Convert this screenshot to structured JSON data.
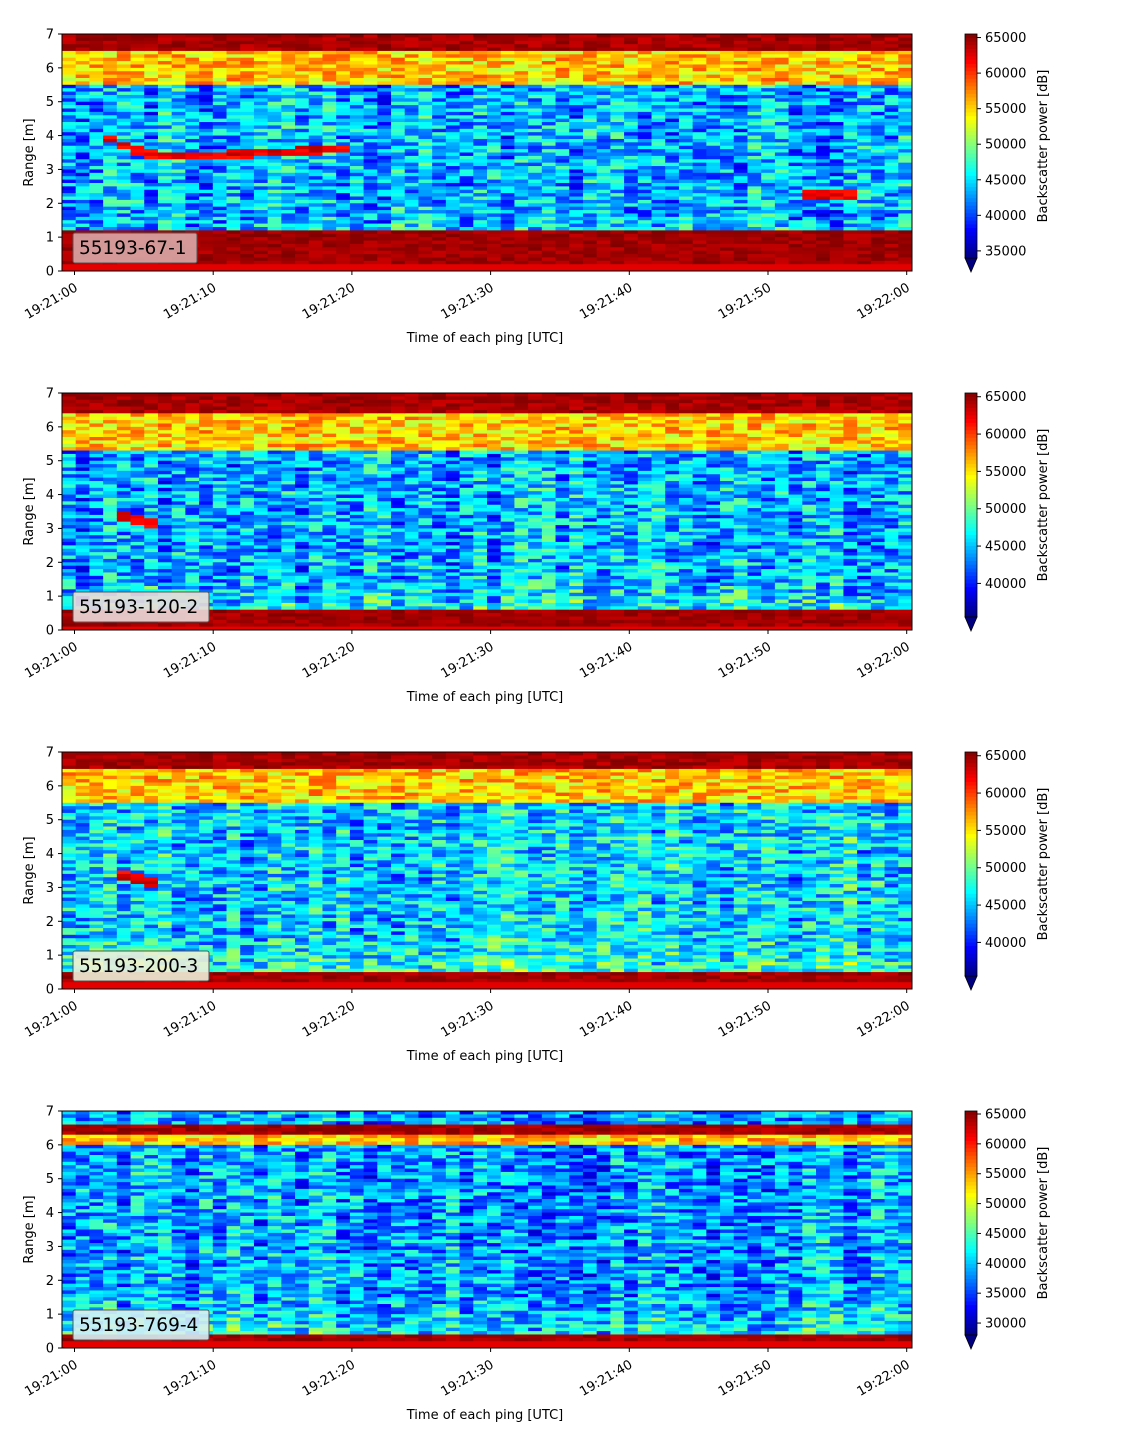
{
  "chart_data": [
    {
      "type": "heatmap",
      "panel_label": "55193-67-1",
      "xlabel": "Time of each ping [UTC]",
      "ylabel": "Range [m]",
      "xticks": [
        "19:21:00",
        "19:21:10",
        "19:21:20",
        "19:21:30",
        "19:21:40",
        "19:21:50",
        "19:22:00"
      ],
      "xlim_seconds_after_1921": [
        -1,
        60.5
      ],
      "ylim": [
        0,
        7
      ],
      "yticks": [
        "0",
        "1",
        "2",
        "3",
        "4",
        "5",
        "6",
        "7"
      ],
      "colorbar_label": "Backscatter power [dB]",
      "colorbar_range": [
        34000,
        65500
      ],
      "colorbar_ticks": [
        "35000",
        "40000",
        "45000",
        "50000",
        "55000",
        "60000",
        "65000"
      ],
      "colormap": "jet",
      "label_box_color": "#d9a8a8",
      "features": {
        "top_band_m": [
          6.5,
          7.0
        ],
        "bright_band_m": [
          5.5,
          6.5
        ],
        "bottom_band_m": [
          0.2,
          1.2
        ],
        "target_track": [
          [
            2,
            4.0
          ],
          [
            4,
            3.6
          ],
          [
            6,
            3.4
          ],
          [
            10,
            3.4
          ],
          [
            14,
            3.5
          ],
          [
            20,
            3.6
          ]
        ],
        "second_target": [
          [
            52,
            2.2
          ],
          [
            56,
            2.2
          ]
        ]
      }
    },
    {
      "type": "heatmap",
      "panel_label": "55193-120-2",
      "xlabel": "Time of each ping [UTC]",
      "ylabel": "Range [m]",
      "xticks": [
        "19:21:00",
        "19:21:10",
        "19:21:20",
        "19:21:30",
        "19:21:40",
        "19:21:50",
        "19:22:00"
      ],
      "ylim": [
        0,
        7
      ],
      "yticks": [
        "0",
        "1",
        "2",
        "3",
        "4",
        "5",
        "6",
        "7"
      ],
      "colorbar_label": "Backscatter power [dB]",
      "colorbar_range": [
        35500,
        65500
      ],
      "colorbar_ticks": [
        "40000",
        "45000",
        "50000",
        "55000",
        "60000",
        "65000"
      ],
      "colormap": "jet",
      "label_box_color": "#ecdcdc",
      "features": {
        "top_band_m": [
          6.4,
          7.0
        ],
        "bright_band_m": [
          5.3,
          6.4
        ],
        "bottom_band_m": [
          0.1,
          0.6
        ],
        "target_track": [
          [
            3,
            3.4
          ],
          [
            5,
            3.2
          ],
          [
            6,
            3.1
          ]
        ]
      }
    },
    {
      "type": "heatmap",
      "panel_label": "55193-200-3",
      "xlabel": "Time of each ping [UTC]",
      "ylabel": "Range [m]",
      "xticks": [
        "19:21:00",
        "19:21:10",
        "19:21:20",
        "19:21:30",
        "19:21:40",
        "19:21:50",
        "19:22:00"
      ],
      "ylim": [
        0,
        7
      ],
      "yticks": [
        "0",
        "1",
        "2",
        "3",
        "4",
        "5",
        "6",
        "7"
      ],
      "colorbar_label": "Backscatter power [dB]",
      "colorbar_range": [
        35500,
        65500
      ],
      "colorbar_ticks": [
        "40000",
        "45000",
        "50000",
        "55000",
        "60000",
        "65000"
      ],
      "colormap": "jet",
      "label_box_color": "#eef0d8",
      "features": {
        "top_band_m": [
          6.5,
          7.0
        ],
        "bright_band_m": [
          5.5,
          6.5
        ],
        "bottom_band_m": [
          0.15,
          0.45
        ],
        "target_track": [
          [
            3,
            3.4
          ],
          [
            5,
            3.2
          ],
          [
            6,
            3.1
          ]
        ]
      }
    },
    {
      "type": "heatmap",
      "panel_label": "55193-769-4",
      "xlabel": "Time of each ping [UTC]",
      "ylabel": "Range [m]",
      "xticks": [
        "19:21:00",
        "19:21:10",
        "19:21:20",
        "19:21:30",
        "19:21:40",
        "19:21:50",
        "19:22:00"
      ],
      "ylim": [
        0,
        7
      ],
      "yticks": [
        "0",
        "1",
        "2",
        "3",
        "4",
        "5",
        "6",
        "7"
      ],
      "colorbar_label": "Backscatter power [dB]",
      "colorbar_range": [
        28000,
        65500
      ],
      "colorbar_ticks": [
        "30000",
        "35000",
        "40000",
        "45000",
        "50000",
        "55000",
        "60000",
        "65000"
      ],
      "colormap": "jet",
      "label_box_color": "#d4f0f4",
      "features": {
        "top_band_m": [
          6.35,
          6.65
        ],
        "bright_band_m": [
          6.0,
          6.35
        ],
        "bottom_band_m": [
          0.15,
          0.35
        ]
      }
    }
  ]
}
